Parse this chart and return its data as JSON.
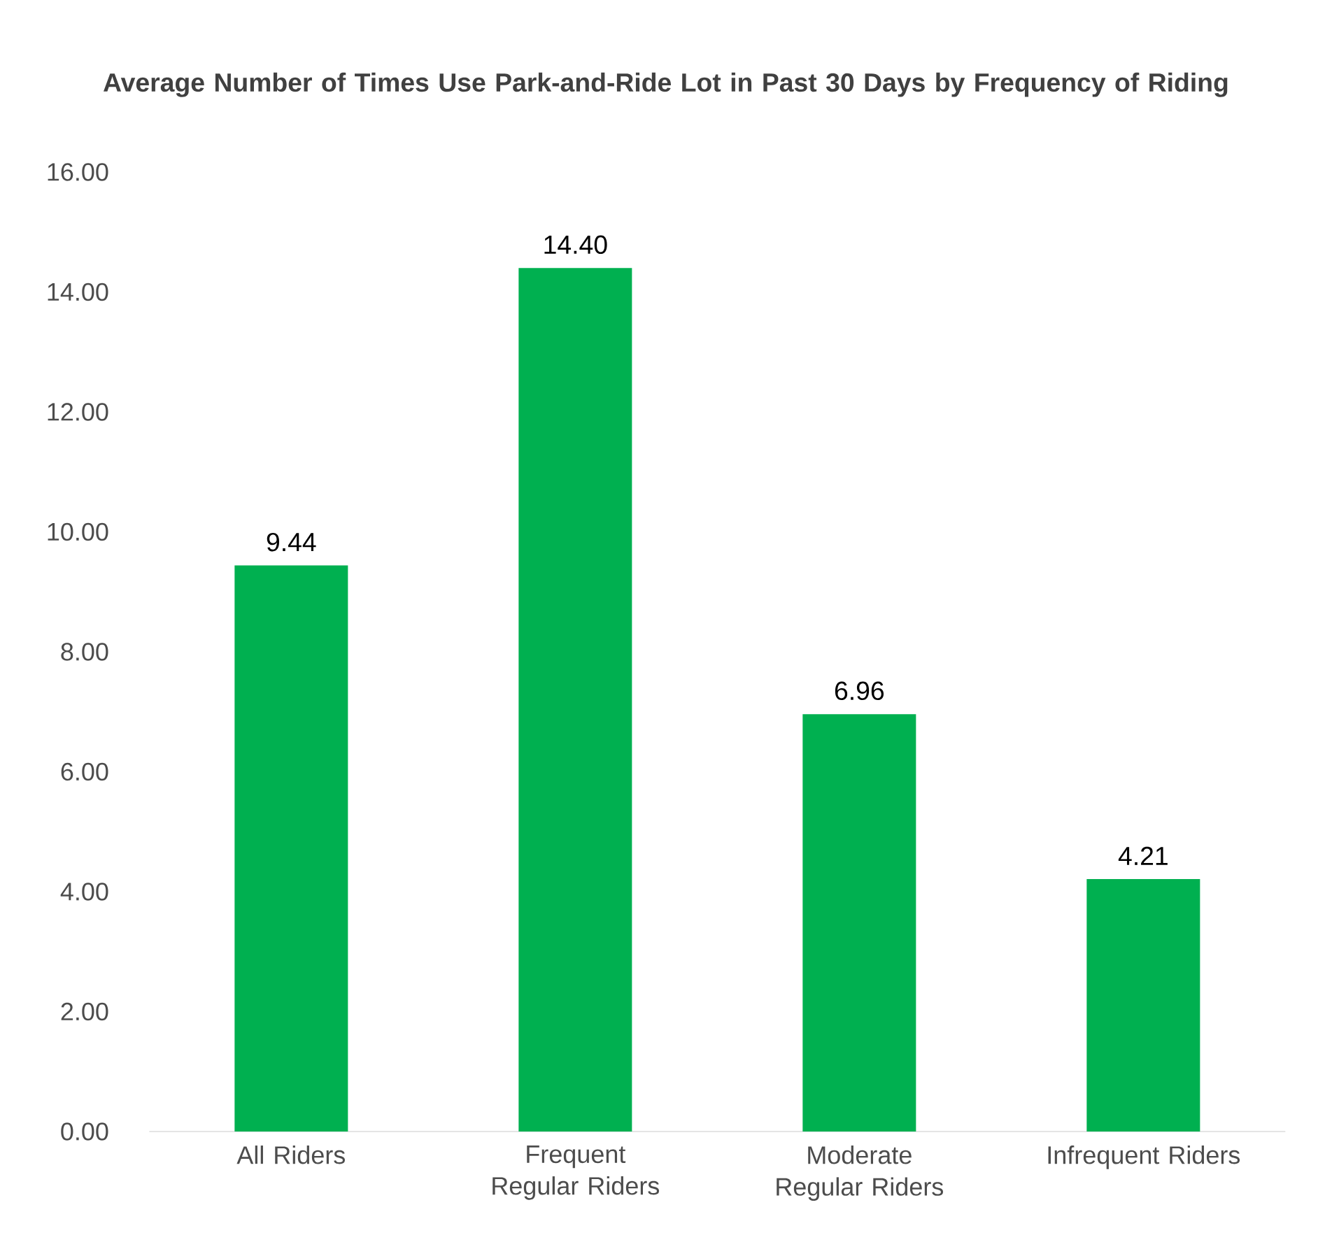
{
  "chart_data": {
    "type": "bar",
    "title": "Average Number of Times Use Park-and-Ride Lot in Past 30 Days by Frequency of Riding",
    "categories": [
      "All Riders",
      "Frequent Regular Riders",
      "Moderate Regular Riders",
      "Infrequent Riders"
    ],
    "values": [
      9.44,
      14.4,
      6.96,
      4.21
    ],
    "value_labels": [
      "9.44",
      "14.40",
      "6.96",
      "4.21"
    ],
    "color": "#00b050",
    "ylim": [
      0,
      16
    ],
    "yticks": [
      {
        "value": 0,
        "label": "0.00"
      },
      {
        "value": 2,
        "label": "2.00"
      },
      {
        "value": 4,
        "label": "4.00"
      },
      {
        "value": 6,
        "label": "6.00"
      },
      {
        "value": 8,
        "label": "8.00"
      },
      {
        "value": 10,
        "label": "10.00"
      },
      {
        "value": 12,
        "label": "12.00"
      },
      {
        "value": 14,
        "label": "14.00"
      },
      {
        "value": 16,
        "label": "16.00"
      }
    ]
  }
}
